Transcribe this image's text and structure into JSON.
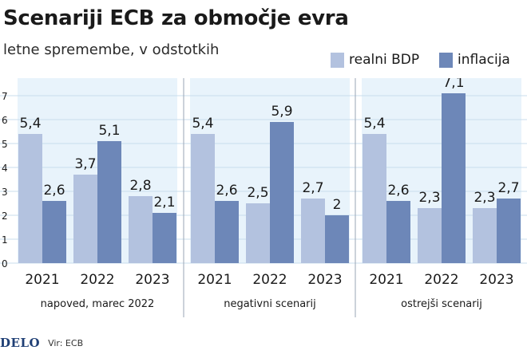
{
  "title": "Scenariji ECB za območje evra",
  "subtitle": "letne spremembe, v odstotkih",
  "legend": [
    {
      "label": "realni BDP",
      "color": "#b3c2df"
    },
    {
      "label": "inflacija",
      "color": "#6d87b8"
    }
  ],
  "footer": {
    "brand": "DELO",
    "source": "Vir: ECB"
  },
  "colors": {
    "panel_bg": "#e8f3fb",
    "gridline": "#c9dcec",
    "text": "#1a1a1a"
  },
  "chart_data": {
    "type": "bar",
    "ylim": [
      0,
      7.6
    ],
    "yticks": [
      "0",
      "1",
      "2",
      "3",
      "4",
      "5",
      "6",
      "7"
    ],
    "grid": true,
    "legend_position": "top-right",
    "groups": [
      {
        "label": "napoved, marec 2022",
        "categories": [
          "2021",
          "2022",
          "2023"
        ],
        "series": [
          {
            "name": "realni BDP",
            "values": [
              5.4,
              3.7,
              2.8
            ],
            "labels": [
              "5,4",
              "3,7",
              "2,8"
            ]
          },
          {
            "name": "inflacija",
            "values": [
              2.6,
              5.1,
              2.1
            ],
            "labels": [
              "2,6",
              "5,1",
              "2,1"
            ]
          }
        ]
      },
      {
        "label": "negativni scenarij",
        "categories": [
          "2021",
          "2022",
          "2023"
        ],
        "series": [
          {
            "name": "realni BDP",
            "values": [
              5.4,
              2.5,
              2.7
            ],
            "labels": [
              "5,4",
              "2,5",
              "2,7"
            ]
          },
          {
            "name": "inflacija",
            "values": [
              2.6,
              5.9,
              2.0
            ],
            "labels": [
              "2,6",
              "5,9",
              "2"
            ]
          }
        ]
      },
      {
        "label": "ostrejši scenarij",
        "categories": [
          "2021",
          "2022",
          "2023"
        ],
        "series": [
          {
            "name": "realni BDP",
            "values": [
              5.4,
              2.3,
              2.3
            ],
            "labels": [
              "5,4",
              "2,3",
              "2,3"
            ]
          },
          {
            "name": "inflacija",
            "values": [
              2.6,
              7.1,
              2.7
            ],
            "labels": [
              "2,6",
              "7,1",
              "2,7"
            ]
          }
        ]
      }
    ]
  }
}
